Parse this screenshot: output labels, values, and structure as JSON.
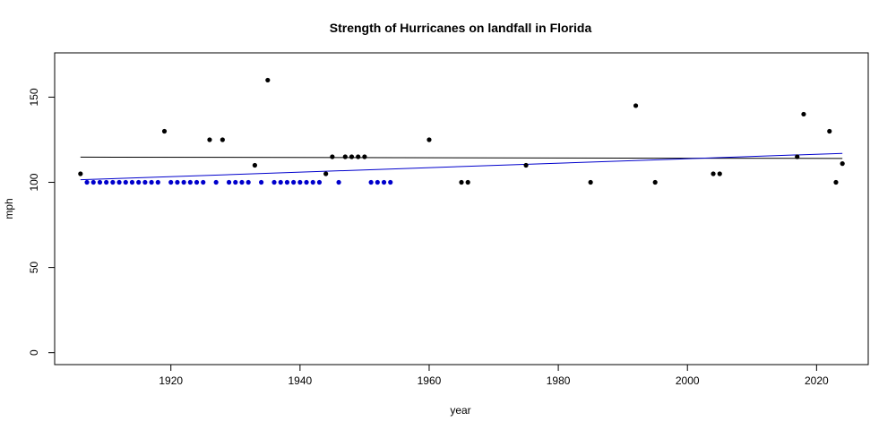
{
  "chart_data": {
    "type": "scatter",
    "title": "Strength of Hurricanes on landfall in Florida",
    "xlabel": "year",
    "ylabel": "mph",
    "xlim": [
      1902,
      2028
    ],
    "ylim": [
      -7,
      176
    ],
    "xticks": [
      1920,
      1940,
      1960,
      1980,
      2000,
      2020
    ],
    "yticks": [
      0,
      50,
      100,
      150
    ],
    "grid": false,
    "series": [
      {
        "color": "#000000",
        "points": [
          [
            1906,
            105
          ],
          [
            1919,
            130
          ],
          [
            1926,
            125
          ],
          [
            1928,
            125
          ],
          [
            1933,
            110
          ],
          [
            1935,
            160
          ],
          [
            1944,
            105
          ],
          [
            1945,
            115
          ],
          [
            1947,
            115
          ],
          [
            1948,
            115
          ],
          [
            1949,
            115
          ],
          [
            1950,
            115
          ],
          [
            1960,
            125
          ],
          [
            1965,
            100
          ],
          [
            1966,
            100
          ],
          [
            1975,
            110
          ],
          [
            1985,
            100
          ],
          [
            1992,
            145
          ],
          [
            1995,
            100
          ],
          [
            2004,
            105
          ],
          [
            2005,
            105
          ],
          [
            2017,
            115
          ],
          [
            2018,
            140
          ],
          [
            2022,
            130
          ],
          [
            2023,
            100
          ],
          [
            2024,
            111
          ]
        ]
      },
      {
        "color": "#0000cc",
        "points": [
          [
            1907,
            100
          ],
          [
            1908,
            100
          ],
          [
            1909,
            100
          ],
          [
            1910,
            100
          ],
          [
            1911,
            100
          ],
          [
            1912,
            100
          ],
          [
            1913,
            100
          ],
          [
            1914,
            100
          ],
          [
            1915,
            100
          ],
          [
            1916,
            100
          ],
          [
            1917,
            100
          ],
          [
            1918,
            100
          ],
          [
            1920,
            100
          ],
          [
            1921,
            100
          ],
          [
            1922,
            100
          ],
          [
            1923,
            100
          ],
          [
            1924,
            100
          ],
          [
            1925,
            100
          ],
          [
            1927,
            100
          ],
          [
            1929,
            100
          ],
          [
            1930,
            100
          ],
          [
            1931,
            100
          ],
          [
            1932,
            100
          ],
          [
            1934,
            100
          ],
          [
            1936,
            100
          ],
          [
            1937,
            100
          ],
          [
            1938,
            100
          ],
          [
            1939,
            100
          ],
          [
            1940,
            100
          ],
          [
            1941,
            100
          ],
          [
            1942,
            100
          ],
          [
            1943,
            100
          ],
          [
            1946,
            100
          ],
          [
            1951,
            100
          ],
          [
            1952,
            100
          ],
          [
            1953,
            100
          ],
          [
            1954,
            100
          ]
        ]
      }
    ],
    "trend_lines": [
      {
        "color": "#000000",
        "x": [
          1906,
          2024
        ],
        "y": [
          114.8,
          114.0
        ]
      },
      {
        "color": "#0000cc",
        "x": [
          1906,
          2024
        ],
        "y": [
          101.5,
          117.0
        ]
      }
    ]
  }
}
